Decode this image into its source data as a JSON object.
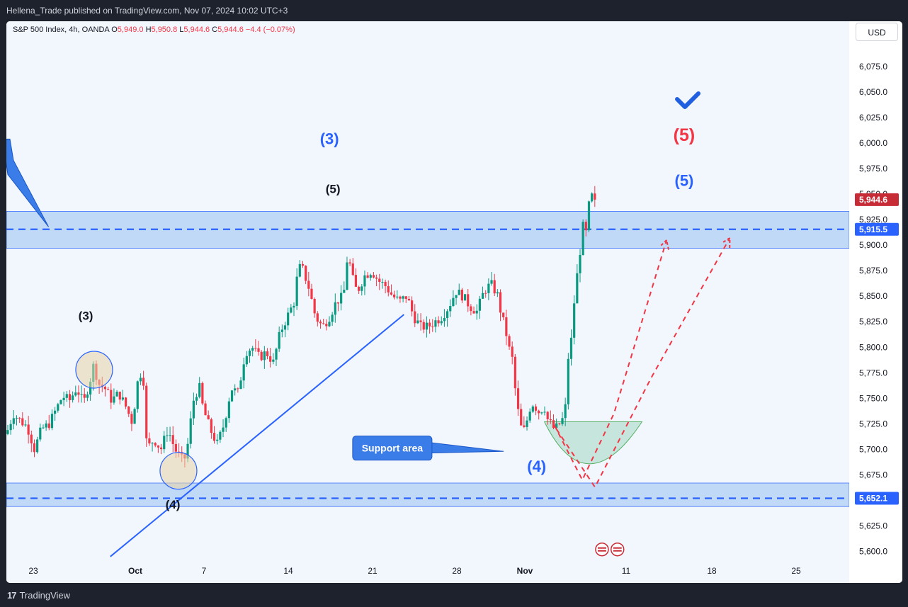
{
  "header": {
    "publisher_line": "Hellena_Trade published on TradingView.com, Nov 07, 2024 10:02 UTC+3"
  },
  "legend": {
    "symbol": "S&P 500 Index, 4h, OANDA",
    "o_label": "O",
    "o_value": "5,949.0",
    "h_label": "H",
    "h_value": "5,950.8",
    "l_label": "L",
    "l_value": "5,944.6",
    "c_label": "C",
    "c_value": "5,944.6",
    "change": "−4.4 (−0.07%)"
  },
  "currency_button": "USD",
  "footer": {
    "brand": "TradingView",
    "logo_mark": "17"
  },
  "colors": {
    "up": "#089981",
    "down": "#f23645",
    "blue": "#2962ff",
    "zone_fill": "#bbd6f7",
    "support_fill": "#bfe3d8",
    "tag_red": "#c62b36"
  },
  "chart_data": {
    "type": "candlestick",
    "symbol": "S&P 500 Index",
    "timeframe": "4h",
    "ylim": [
      5590,
      6095
    ],
    "xlim": [
      0,
      1200
    ],
    "y_ticks": [
      6075,
      6050,
      6025,
      6000,
      5975,
      5950,
      5925,
      5900,
      5875,
      5850,
      5825,
      5800,
      5775,
      5750,
      5725,
      5700,
      5675,
      5650,
      5625,
      5600
    ],
    "y_tick_labels": [
      "6,075.0",
      "6,050.0",
      "6,025.0",
      "6,000.0",
      "5,975.0",
      "5,950.0",
      "5,925.0",
      "5,900.0",
      "5,875.0",
      "5,850.0",
      "5,825.0",
      "5,800.0",
      "5,775.0",
      "5,750.0",
      "5,725.0",
      "5,700.0",
      "5,675.0",
      "5,650.0",
      "5,625.0",
      "5,600.0"
    ],
    "x_ticks": [
      {
        "label": "23",
        "x": 38,
        "bold": false
      },
      {
        "label": "Oct",
        "x": 182,
        "bold": true
      },
      {
        "label": "7",
        "x": 279,
        "bold": false
      },
      {
        "label": "14",
        "x": 398,
        "bold": false
      },
      {
        "label": "21",
        "x": 517,
        "bold": false
      },
      {
        "label": "28",
        "x": 636,
        "bold": false
      },
      {
        "label": "Nov",
        "x": 732,
        "bold": true
      },
      {
        "label": "11",
        "x": 875,
        "bold": false
      },
      {
        "label": "18",
        "x": 996,
        "bold": false
      },
      {
        "label": "25",
        "x": 1115,
        "bold": false
      }
    ],
    "price_path": [
      [
        0,
        5715
      ],
      [
        10,
        5735
      ],
      [
        20,
        5728
      ],
      [
        30,
        5722
      ],
      [
        40,
        5700
      ],
      [
        50,
        5720
      ],
      [
        60,
        5724
      ],
      [
        70,
        5738
      ],
      [
        80,
        5752
      ],
      [
        90,
        5748
      ],
      [
        100,
        5760
      ],
      [
        110,
        5745
      ],
      [
        120,
        5770
      ],
      [
        125,
        5785
      ],
      [
        130,
        5765
      ],
      [
        140,
        5760
      ],
      [
        150,
        5748
      ],
      [
        160,
        5755
      ],
      [
        170,
        5742
      ],
      [
        180,
        5725
      ],
      [
        185,
        5760
      ],
      [
        190,
        5775
      ],
      [
        195,
        5770
      ],
      [
        200,
        5700
      ],
      [
        210,
        5710
      ],
      [
        220,
        5700
      ],
      [
        230,
        5720
      ],
      [
        240,
        5700
      ],
      [
        250,
        5690
      ],
      [
        255,
        5692
      ],
      [
        260,
        5712
      ],
      [
        265,
        5745
      ],
      [
        270,
        5755
      ],
      [
        275,
        5760
      ],
      [
        280,
        5740
      ],
      [
        290,
        5720
      ],
      [
        300,
        5705
      ],
      [
        310,
        5725
      ],
      [
        320,
        5760
      ],
      [
        330,
        5755
      ],
      [
        340,
        5795
      ],
      [
        350,
        5800
      ],
      [
        360,
        5790
      ],
      [
        370,
        5795
      ],
      [
        380,
        5785
      ],
      [
        390,
        5815
      ],
      [
        400,
        5830
      ],
      [
        410,
        5845
      ],
      [
        415,
        5875
      ],
      [
        420,
        5880
      ],
      [
        425,
        5870
      ],
      [
        430,
        5860
      ],
      [
        440,
        5830
      ],
      [
        450,
        5820
      ],
      [
        460,
        5830
      ],
      [
        470,
        5845
      ],
      [
        480,
        5850
      ],
      [
        485,
        5885
      ],
      [
        490,
        5880
      ],
      [
        495,
        5860
      ],
      [
        500,
        5855
      ],
      [
        510,
        5870
      ],
      [
        520,
        5875
      ],
      [
        530,
        5865
      ],
      [
        540,
        5860
      ],
      [
        550,
        5850
      ],
      [
        560,
        5845
      ],
      [
        570,
        5850
      ],
      [
        580,
        5830
      ],
      [
        590,
        5820
      ],
      [
        600,
        5820
      ],
      [
        610,
        5825
      ],
      [
        620,
        5830
      ],
      [
        630,
        5840
      ],
      [
        640,
        5855
      ],
      [
        650,
        5850
      ],
      [
        660,
        5840
      ],
      [
        670,
        5835
      ],
      [
        680,
        5855
      ],
      [
        690,
        5862
      ],
      [
        700,
        5850
      ],
      [
        705,
        5830
      ],
      [
        710,
        5820
      ],
      [
        715,
        5800
      ],
      [
        720,
        5790
      ],
      [
        725,
        5755
      ],
      [
        730,
        5730
      ],
      [
        735,
        5715
      ],
      [
        740,
        5725
      ],
      [
        745,
        5740
      ],
      [
        750,
        5745
      ],
      [
        755,
        5740
      ],
      [
        760,
        5735
      ],
      [
        765,
        5745
      ],
      [
        770,
        5730
      ],
      [
        775,
        5725
      ],
      [
        780,
        5720
      ],
      [
        785,
        5722
      ],
      [
        790,
        5728
      ],
      [
        795,
        5732
      ],
      [
        800,
        5790
      ],
      [
        805,
        5810
      ],
      [
        810,
        5860
      ],
      [
        815,
        5880
      ],
      [
        820,
        5920
      ],
      [
        825,
        5910
      ],
      [
        828,
        5935
      ],
      [
        833,
        5948
      ],
      [
        838,
        5944.6
      ]
    ],
    "support_zone": {
      "top": 5667,
      "bottom": 5644,
      "line": 5652.1
    },
    "resistance_zone": {
      "top": 5933,
      "bottom": 5897,
      "line": 5915.5
    },
    "price_tags": [
      {
        "value": 5944.6,
        "label": "5,944.6",
        "color": "#c62b36"
      },
      {
        "value": 5915.5,
        "label": "5,915.5",
        "color": "#2962ff"
      },
      {
        "value": 5652.1,
        "label": "5,652.1",
        "color": "#2962ff"
      }
    ],
    "wave_labels": [
      {
        "text": "(3)",
        "x": 113,
        "price": 5827,
        "color": "#131722",
        "size": 17
      },
      {
        "text": "(4)",
        "x": 237,
        "price": 5642,
        "color": "#131722",
        "size": 17
      },
      {
        "text": "(5)",
        "x": 465,
        "price": 5951,
        "color": "#131722",
        "size": 17
      },
      {
        "text": "(3)",
        "x": 460,
        "price": 5999,
        "color": "#2962ff",
        "size": 22
      },
      {
        "text": "(4)",
        "x": 755,
        "price": 5678,
        "color": "#2962ff",
        "size": 22
      },
      {
        "text": "(5)",
        "x": 965,
        "price": 5958,
        "color": "#2962ff",
        "size": 22
      },
      {
        "text": "(5)",
        "x": 965,
        "price": 6002,
        "color": "#f23645",
        "size": 25
      }
    ],
    "annotation": "Support area",
    "trend_line": [
      [
        148,
        5595
      ],
      [
        566,
        5832
      ]
    ],
    "projection_1": [
      [
        780,
        5724
      ],
      [
        820,
        5670
      ],
      [
        865,
        5735
      ],
      [
        940,
        5905
      ]
    ],
    "projection_2": [
      [
        783,
        5720
      ],
      [
        838,
        5663
      ],
      [
        918,
        5770
      ],
      [
        1030,
        5907
      ]
    ],
    "circles": [
      [
        125,
        5778
      ],
      [
        245,
        5679
      ]
    ]
  }
}
